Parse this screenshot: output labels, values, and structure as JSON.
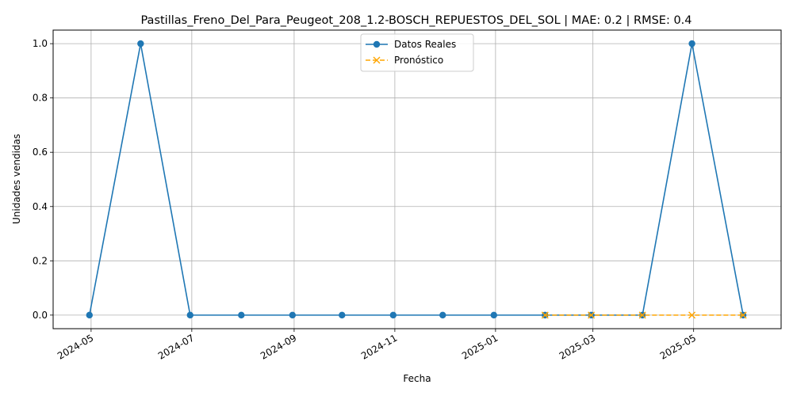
{
  "chart_data": {
    "type": "line",
    "title": "Pastillas_Freno_Del_Para_Peugeot_208_1.2-BOSCH_REPUESTOS_DEL_SOL | MAE: 0.2 | RMSE: 0.4",
    "xlabel": "Fecha",
    "ylabel": "Unidades vendidas",
    "xlim": [
      "2024-04-08",
      "2025-06-23"
    ],
    "ylim": [
      -0.05,
      1.05
    ],
    "grid": true,
    "legend_position": "top-center",
    "x_ticks": [
      "2024-05",
      "2024-07",
      "2024-09",
      "2024-11",
      "2025-01",
      "2025-03",
      "2025-05"
    ],
    "y_ticks": [
      "0.0",
      "0.2",
      "0.4",
      "0.6",
      "0.8",
      "1.0"
    ],
    "series": [
      {
        "name": "Datos Reales",
        "color": "#1f77b4",
        "marker": "circle",
        "line_style": "solid",
        "x": [
          "2024-04-30",
          "2024-05-31",
          "2024-06-30",
          "2024-07-31",
          "2024-08-31",
          "2024-09-30",
          "2024-10-31",
          "2024-11-30",
          "2024-12-31",
          "2025-01-31",
          "2025-02-28",
          "2025-03-31",
          "2025-04-30",
          "2025-05-31"
        ],
        "values": [
          0,
          1,
          0,
          0,
          0,
          0,
          0,
          0,
          0,
          0,
          0,
          0,
          1,
          0
        ]
      },
      {
        "name": "Pronóstico",
        "color": "#ffa500",
        "marker": "x",
        "line_style": "dashed",
        "x": [
          "2025-01-31",
          "2025-02-28",
          "2025-03-31",
          "2025-04-30",
          "2025-05-31"
        ],
        "values": [
          0,
          0,
          0,
          0,
          0
        ]
      }
    ]
  }
}
